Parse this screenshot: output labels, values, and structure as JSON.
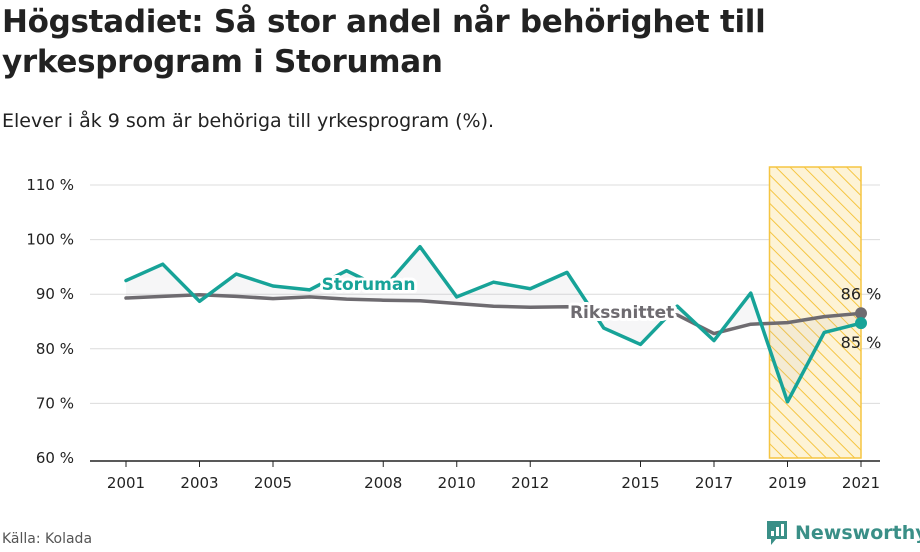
{
  "title": "Högstadiet: Så stor andel når behörighet till yrkesprogram i Storuman",
  "subtitle": "Elever i åk 9 som är behöriga till yrkesprogram (%).",
  "source": "Källa: Kolada",
  "brand": "Newsworthy",
  "colors": {
    "storuman": "#17a398",
    "riks": "#6e6b70",
    "grid": "#dcdcdc",
    "highlight_stroke": "#f5c542",
    "highlight_fill": "#fdf3d6"
  },
  "chart_data": {
    "type": "line",
    "title": "Högstadiet: Så stor andel når behörighet till yrkesprogram i Storuman",
    "subtitle": "Elever i åk 9 som är behöriga till yrkesprogram (%).",
    "ylim": [
      60,
      110
    ],
    "yticks": [
      60,
      70,
      80,
      90,
      100,
      110
    ],
    "ytick_labels": [
      "60 %",
      "70 %",
      "80 %",
      "90 %",
      "100 %",
      "110 %"
    ],
    "xlim": [
      2001,
      2021
    ],
    "xticks": [
      2001,
      2003,
      2005,
      2008,
      2010,
      2012,
      2015,
      2017,
      2019,
      2021
    ],
    "xtick_labels": [
      "2001",
      "2003",
      "2005",
      "2008",
      "2010",
      "2012",
      "2015",
      "2017",
      "2019",
      "2021"
    ],
    "grid": true,
    "highlight_range": [
      2019,
      2021
    ],
    "series": [
      {
        "name": "Storuman",
        "x": [
          2001,
          2002,
          2003,
          2004,
          2005,
          2006,
          2007,
          2008,
          2009,
          2010,
          2011,
          2012,
          2013,
          2014,
          2015,
          2016,
          2017,
          2018,
          2019,
          2020,
          2021
        ],
        "values": [
          92.5,
          95.5,
          88.7,
          93.7,
          91.5,
          90.8,
          94.3,
          91.0,
          98.7,
          89.5,
          92.2,
          91.0,
          94.0,
          83.8,
          80.8,
          87.8,
          81.5,
          90.2,
          70.3,
          83.0,
          84.7
        ],
        "end_label": "85 %"
      },
      {
        "name": "Rikssnittet",
        "x": [
          2001,
          2002,
          2003,
          2004,
          2005,
          2006,
          2007,
          2008,
          2009,
          2010,
          2011,
          2012,
          2013,
          2014,
          2015,
          2016,
          2017,
          2018,
          2019,
          2020,
          2021
        ],
        "values": [
          89.3,
          89.6,
          89.9,
          89.6,
          89.2,
          89.5,
          89.1,
          88.9,
          88.8,
          88.3,
          87.8,
          87.6,
          87.7,
          87.4,
          87.0,
          86.2,
          82.8,
          84.5,
          84.8,
          85.9,
          86.5
        ],
        "end_label": "86 %"
      }
    ]
  }
}
